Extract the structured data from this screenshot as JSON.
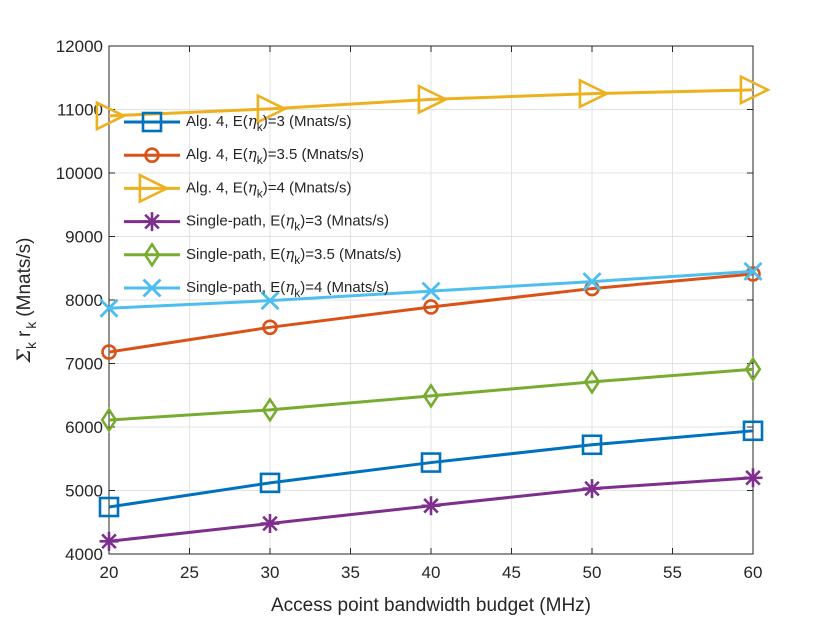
{
  "chart_data": {
    "type": "line",
    "title": "",
    "xlabel": "Access point bandwidth budget (MHz)",
    "ylabel": {
      "sum_symbol": "Σ",
      "sum_sub": "k",
      "var": "r",
      "var_sub": "k",
      "unit": "(Mnats/s)"
    },
    "xlim": [
      20,
      60
    ],
    "ylim": [
      4000,
      12000
    ],
    "xticks": [
      "20",
      "25",
      "30",
      "35",
      "40",
      "45",
      "50",
      "55",
      "60"
    ],
    "xtick_values": [
      20,
      25,
      30,
      35,
      40,
      45,
      50,
      55,
      60
    ],
    "yticks": [
      "4000",
      "5000",
      "6000",
      "7000",
      "8000",
      "9000",
      "10000",
      "11000",
      "12000"
    ],
    "ytick_values": [
      4000,
      5000,
      6000,
      7000,
      8000,
      9000,
      10000,
      11000,
      12000
    ],
    "grid": true,
    "legend_position": "top-left",
    "x": [
      20,
      30,
      40,
      50,
      60
    ],
    "series": [
      {
        "name": "Alg. 4, E(ηk)=3 (Mnats/s)",
        "legend_prefix": "Alg. 4, E(",
        "legend_sub": "k",
        "legend_suffix": ")=3 (Mnats/s)",
        "marker": "square",
        "color": "#0072BD",
        "values": [
          4740,
          5120,
          5440,
          5720,
          5940
        ]
      },
      {
        "name": "Alg. 4, E(ηk)=3.5 (Mnats/s)",
        "legend_prefix": "Alg. 4, E(",
        "legend_sub": "k",
        "legend_suffix": ")=3.5 (Mnats/s)",
        "marker": "circle",
        "color": "#D95319",
        "values": [
          7180,
          7570,
          7890,
          8180,
          8410
        ]
      },
      {
        "name": "Alg. 4, E(ηk)=4 (Mnats/s)",
        "legend_prefix": "Alg. 4, E(",
        "legend_sub": "k",
        "legend_suffix": ")=4 (Mnats/s)",
        "marker": "triangle-right",
        "color": "#EDB120",
        "values": [
          10900,
          11010,
          11160,
          11250,
          11310
        ]
      },
      {
        "name": "Single-path, E(ηk)=3 (Mnats/s)",
        "legend_prefix": "Single-path, E(",
        "legend_sub": "k",
        "legend_suffix": ")=3 (Mnats/s)",
        "marker": "asterisk",
        "color": "#7E2F8E",
        "values": [
          4200,
          4480,
          4760,
          5030,
          5200
        ]
      },
      {
        "name": "Single-path, E(ηk)=3.5 (Mnats/s)",
        "legend_prefix": "Single-path, E(",
        "legend_sub": "k",
        "legend_suffix": ")=3.5 (Mnats/s)",
        "marker": "diamond",
        "color": "#77AC30",
        "values": [
          6110,
          6270,
          6490,
          6710,
          6910
        ]
      },
      {
        "name": "Single-path, E(ηk)=4 (Mnats/s)",
        "legend_prefix": "Single-path, E(",
        "legend_sub": "k",
        "legend_suffix": ")=4 (Mnats/s)",
        "marker": "x",
        "color": "#4DBEEE",
        "values": [
          7870,
          7990,
          8140,
          8290,
          8450
        ]
      }
    ],
    "legend_symbol": "η"
  }
}
